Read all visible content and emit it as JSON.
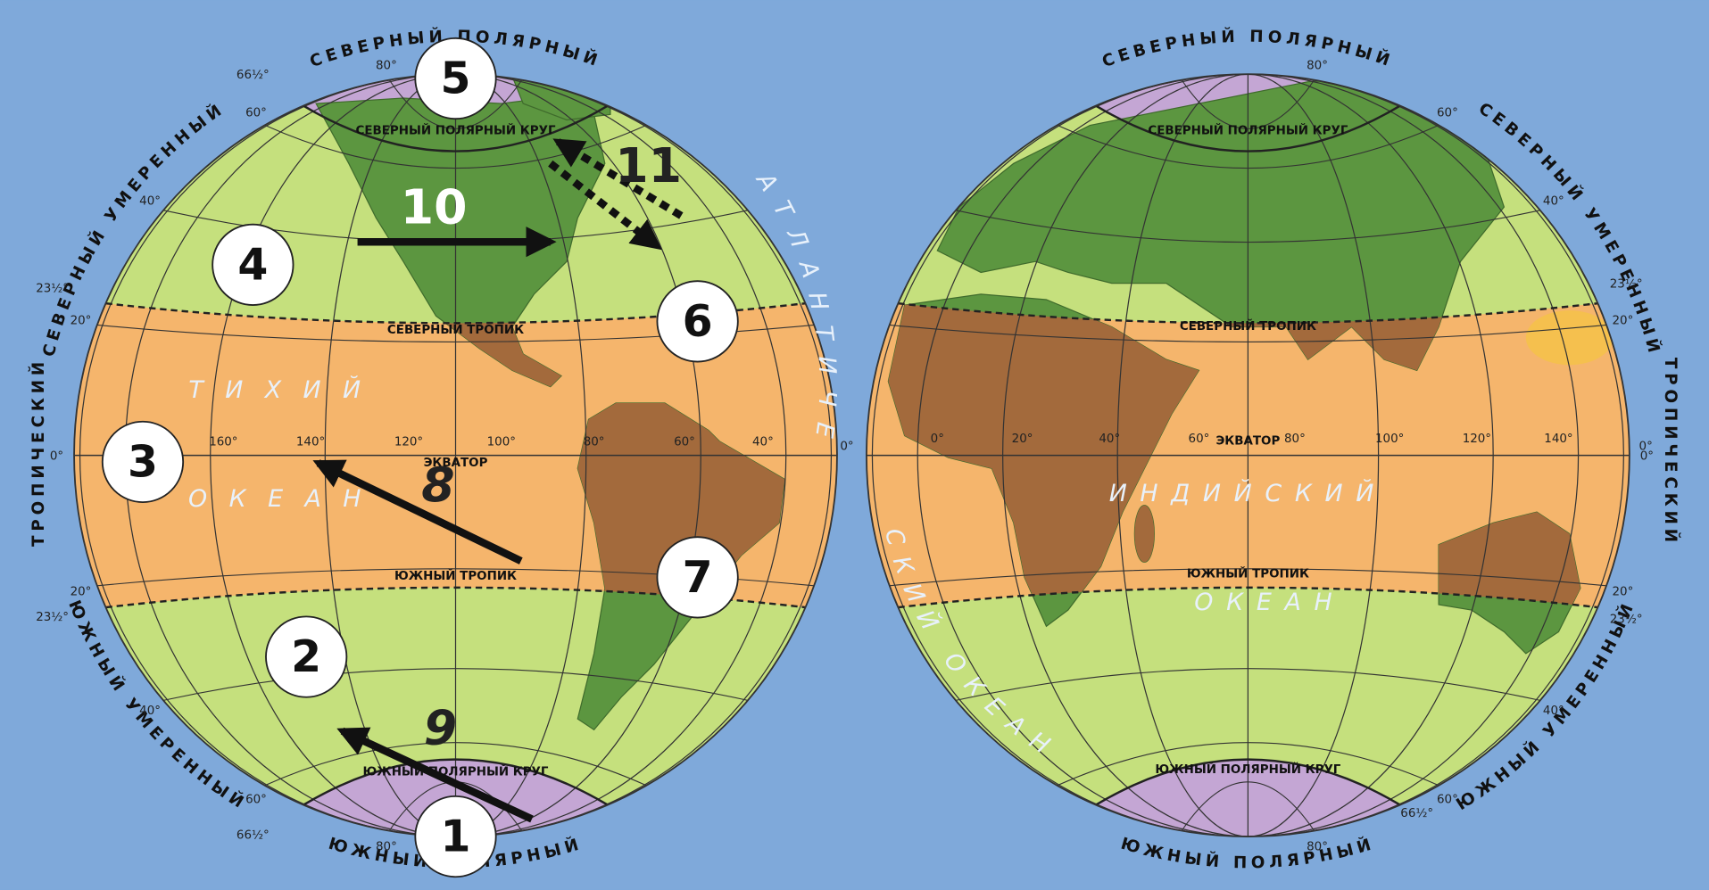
{
  "zone_labels": {
    "north_polar": "СЕВЕРНЫЙ ПОЛЯРНЫЙ",
    "north_temperate": "СЕВЕРНЫЙ УМЕРЕННЫЙ",
    "tropical": "ТРОПИЧЕСКИЙ",
    "south_temperate": "ЮЖНЫЙ УМЕРЕННЫЙ",
    "south_polar": "ЮЖНЫЙ ПОЛЯРНЫЙ"
  },
  "line_labels": {
    "north_circle": "СЕВЕРНЫЙ ПОЛЯРНЫЙ КРУГ",
    "north_tropic": "СЕВЕРНЫЙ ТРОПИК",
    "equator": "ЭКВАТОР",
    "south_tropic": "ЮЖНЫЙ ТРОПИК",
    "south_circle": "ЮЖНЫЙ ПОЛЯРНЫЙ КРУГ"
  },
  "oceans": {
    "pacific": [
      "ТИХИЙ",
      "ОКЕАН"
    ],
    "atlantic": [
      "АТЛАНТИЧЕ",
      "СКИЙ ОКЕАН"
    ],
    "indian": [
      "ИНДИЙСКИЙ",
      "ОКЕАН"
    ]
  },
  "latitude_labels": [
    "80°",
    "60°",
    "40°",
    "20°",
    "0°"
  ],
  "special_latitudes": [
    "66½°",
    "23½°"
  ],
  "west_longitudes": [
    "160°",
    "140°",
    "120°",
    "100°",
    "80°",
    "60°",
    "40°"
  ],
  "east_longitudes": [
    "0°",
    "20°",
    "40°",
    "60°",
    "80°",
    "100°",
    "120°",
    "140°"
  ],
  "markers": [
    "1",
    "2",
    "3",
    "4",
    "5",
    "6",
    "7"
  ],
  "arrow_labels": [
    "8",
    "9",
    "10",
    "11"
  ]
}
